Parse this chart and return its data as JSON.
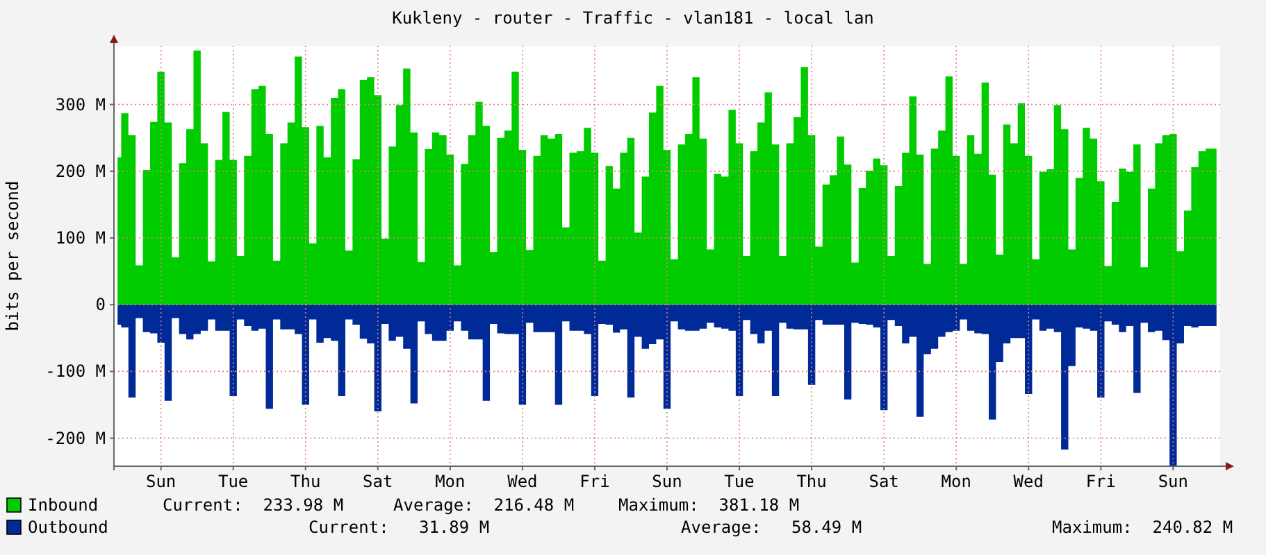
{
  "chart_data": {
    "type": "area",
    "title": "Kukleny - router - Traffic - vlan181 - local lan",
    "ylabel": "bits per second",
    "categories": [
      null,
      null,
      null,
      null,
      null,
      null,
      "Sun",
      null,
      null,
      null,
      null,
      null,
      null,
      null,
      null,
      null,
      "Tue",
      null,
      null,
      null,
      null,
      null,
      null,
      null,
      null,
      null,
      "Thu",
      null,
      null,
      null,
      null,
      null,
      null,
      null,
      null,
      null,
      "Sat",
      null,
      null,
      null,
      null,
      null,
      null,
      null,
      null,
      null,
      "Mon",
      null,
      null,
      null,
      null,
      null,
      null,
      null,
      null,
      null,
      "Wed",
      null,
      null,
      null,
      null,
      null,
      null,
      null,
      null,
      null,
      "Fri",
      null,
      null,
      null,
      null,
      null,
      null,
      null,
      null,
      null,
      "Sun",
      null,
      null,
      null,
      null,
      null,
      null,
      null,
      null,
      null,
      "Tue",
      null,
      null,
      null,
      null,
      null,
      null,
      null,
      null,
      null,
      "Thu",
      null,
      null,
      null,
      null,
      null,
      null,
      null,
      null,
      null,
      "Sat",
      null,
      null,
      null,
      null,
      null,
      null,
      null,
      null,
      null,
      "Mon",
      null,
      null,
      null,
      null,
      null,
      null,
      null,
      null,
      null,
      "Wed",
      null,
      null,
      null,
      null,
      null,
      null,
      null,
      null,
      null,
      "Fri",
      null,
      null,
      null,
      null,
      null,
      null,
      null,
      null,
      null,
      "Sun",
      null,
      null,
      null,
      null,
      null,
      null
    ],
    "series": [
      {
        "name": "Inbound",
        "color": "#00cc00",
        "values": [
          221,
          287,
          254,
          59,
          202,
          274,
          349,
          273,
          71,
          212,
          263,
          381,
          242,
          65,
          217,
          289,
          217,
          73,
          223,
          323,
          328,
          256,
          66,
          242,
          273,
          372,
          266,
          92,
          268,
          221,
          310,
          323,
          81,
          218,
          337,
          341,
          314,
          99,
          237,
          299,
          354,
          258,
          64,
          233,
          258,
          254,
          225,
          59,
          211,
          254,
          304,
          268,
          79,
          250,
          261,
          349,
          232,
          82,
          223,
          254,
          249,
          256,
          116,
          228,
          230,
          265,
          228,
          66,
          208,
          174,
          228,
          250,
          108,
          192,
          288,
          328,
          232,
          68,
          240,
          256,
          341,
          249,
          83,
          196,
          192,
          292,
          242,
          73,
          230,
          273,
          318,
          240,
          73,
          242,
          281,
          356,
          254,
          87,
          180,
          194,
          252,
          210,
          63,
          175,
          201,
          219,
          209,
          73,
          178,
          228,
          312,
          225,
          61,
          234,
          261,
          342,
          223,
          61,
          254,
          226,
          333,
          195,
          75,
          270,
          242,
          302,
          223,
          68,
          199,
          203,
          299,
          263,
          83,
          190,
          265,
          249,
          185,
          58,
          154,
          204,
          199,
          240,
          56,
          174,
          242,
          254,
          256,
          80,
          141,
          206,
          230,
          234,
          234
        ]
      },
      {
        "name": "Outbound",
        "color": "#002a97",
        "values": [
          -30,
          -34,
          -139,
          -20,
          -41,
          -43,
          -57,
          -144,
          -20,
          -44,
          -52,
          -44,
          -39,
          -22,
          -39,
          -39,
          -137,
          -22,
          -32,
          -39,
          -36,
          -156,
          -22,
          -37,
          -37,
          -44,
          -150,
          -22,
          -57,
          -50,
          -54,
          -137,
          -22,
          -30,
          -51,
          -58,
          -160,
          -29,
          -54,
          -48,
          -66,
          -148,
          -25,
          -44,
          -54,
          -54,
          -39,
          -25,
          -39,
          -52,
          -52,
          -144,
          -29,
          -43,
          -44,
          -44,
          -150,
          -27,
          -41,
          -41,
          -41,
          -150,
          -25,
          -39,
          -39,
          -44,
          -137,
          -29,
          -30,
          -42,
          -37,
          -139,
          -48,
          -66,
          -59,
          -52,
          -156,
          -25,
          -37,
          -39,
          -39,
          -36,
          -27,
          -34,
          -36,
          -39,
          -137,
          -23,
          -44,
          -58,
          -39,
          -137,
          -27,
          -36,
          -37,
          -37,
          -120,
          -23,
          -30,
          -30,
          -30,
          -142,
          -27,
          -29,
          -30,
          -34,
          -158,
          -23,
          -32,
          -58,
          -48,
          -168,
          -74,
          -66,
          -48,
          -41,
          -39,
          -22,
          -39,
          -43,
          -44,
          -172,
          -86,
          -58,
          -50,
          -50,
          -134,
          -22,
          -39,
          -36,
          -41,
          -217,
          -92,
          -34,
          -36,
          -39,
          -139,
          -25,
          -30,
          -41,
          -32,
          -132,
          -27,
          -41,
          -39,
          -53,
          -241,
          -58,
          -32,
          -34,
          -32,
          -32,
          -32
        ]
      }
    ],
    "ylim": [
      -242,
      388
    ],
    "yticks": [
      {
        "value": -200,
        "label": "-200 M"
      },
      {
        "value": -100,
        "label": "-100 M"
      },
      {
        "value": 0,
        "label": "0"
      },
      {
        "value": 100,
        "label": "100 M"
      },
      {
        "value": 200,
        "label": "200 M"
      },
      {
        "value": 300,
        "label": "300 M"
      }
    ],
    "grid": true,
    "legend": "bottom",
    "annotations": [
      "Current:  233.98 M",
      "Average:  216.48 M",
      "Maximum:  381.18 M",
      "Current:   31.89 M",
      "Average:   58.49 M",
      "Maximum:  240.82 M"
    ]
  }
}
